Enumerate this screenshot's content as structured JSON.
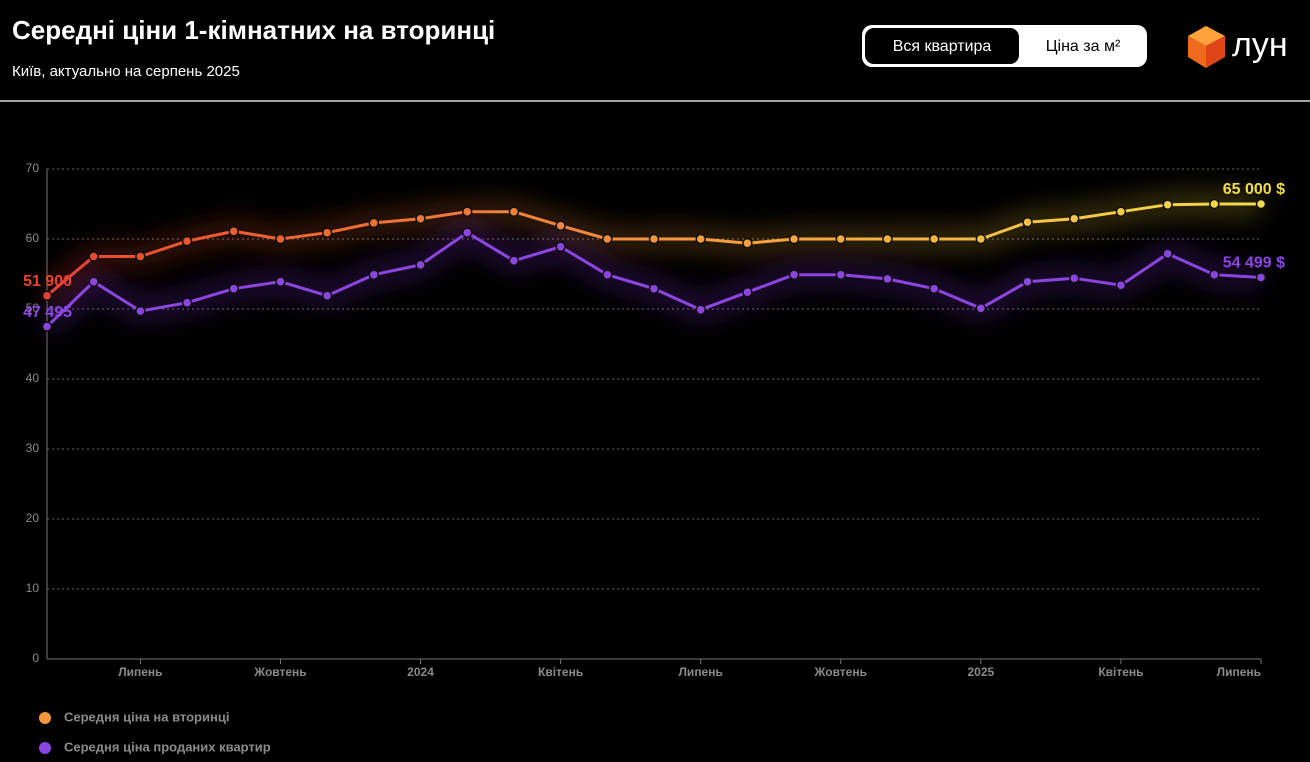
{
  "header": {
    "title": "Середні ціни 1-кімнатних на вторинці",
    "subtitle": "Київ, актуально на серпень 2025"
  },
  "toggle": [
    "Вся квартира",
    "Ціна за м²"
  ],
  "logo": "лун",
  "chart_data": {
    "type": "line",
    "categories": [
      null,
      null,
      "Липень",
      null,
      null,
      "Жовтень",
      null,
      null,
      "2024",
      null,
      null,
      "Квітень",
      null,
      null,
      "Липень",
      null,
      null,
      "Жовтень",
      null,
      null,
      "2025",
      null,
      null,
      "Квітень",
      null,
      null,
      "Липень"
    ],
    "series": [
      {
        "name": "Середня ціна на вторинці",
        "colors": [
          "#e8452c",
          "#f5963c",
          "#f3dc4a"
        ],
        "values": [
          51.9,
          57.5,
          57.5,
          59.7,
          61.1,
          60,
          60.9,
          62.3,
          62.9,
          63.9,
          63.9,
          61.9,
          60,
          60,
          60,
          59.4,
          60,
          60,
          60,
          60,
          60,
          62.4,
          62.9,
          63.9,
          64.9,
          65,
          65
        ],
        "value_labels": [
          "51 900",
          null,
          null,
          null,
          null,
          null,
          null,
          null,
          null,
          null,
          null,
          null,
          null,
          null,
          null,
          null,
          null,
          null,
          null,
          null,
          null,
          null,
          null,
          null,
          null,
          null,
          "65 000 $"
        ]
      },
      {
        "name": "Середня ціна проданих квартир",
        "colors": [
          "#8b45e0"
        ],
        "values": [
          47.495,
          53.9,
          49.7,
          50.9,
          52.9,
          53.9,
          51.9,
          54.9,
          56.3,
          60.9,
          56.9,
          58.9,
          54.9,
          52.9,
          49.9,
          52.4,
          54.9,
          54.9,
          54.3,
          52.9,
          50.1,
          53.9,
          54.4,
          53.4,
          57.9,
          54.9,
          54.499
        ],
        "value_labels": [
          "47 495",
          null,
          null,
          null,
          null,
          null,
          null,
          null,
          null,
          null,
          null,
          null,
          null,
          null,
          null,
          null,
          null,
          null,
          null,
          null,
          null,
          null,
          null,
          null,
          null,
          null,
          "54 499 $"
        ]
      }
    ],
    "ylim": [
      0,
      70
    ],
    "yticks": [
      0,
      10,
      20,
      30,
      40,
      50,
      60,
      70
    ],
    "grid": true
  }
}
